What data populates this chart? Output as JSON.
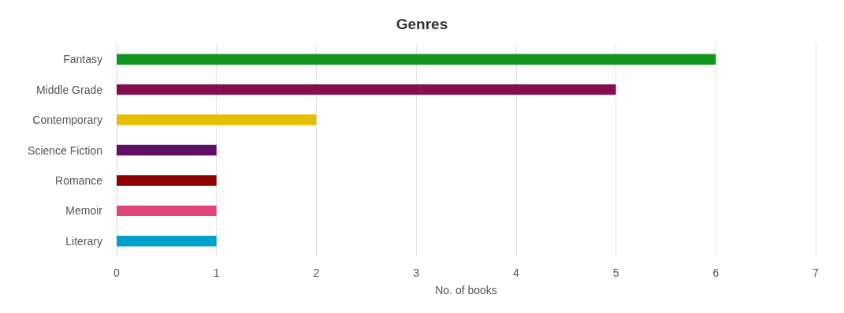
{
  "chart_data": {
    "type": "bar",
    "orientation": "horizontal",
    "title": "Genres",
    "xlabel": "No. of books",
    "categories": [
      "Fantasy",
      "Middle Grade",
      "Contemporary",
      "Science Fiction",
      "Romance",
      "Memoir",
      "Literary"
    ],
    "values": [
      6,
      5,
      2,
      1,
      1,
      1,
      1
    ],
    "colors": [
      "#11961e",
      "#850e4f",
      "#e6bf00",
      "#5f0f63",
      "#8b0000",
      "#e0457b",
      "#009fcc"
    ],
    "xlim": [
      0,
      7
    ],
    "xticks": [
      0,
      1,
      2,
      3,
      4,
      5,
      6,
      7
    ],
    "grid": "x"
  }
}
